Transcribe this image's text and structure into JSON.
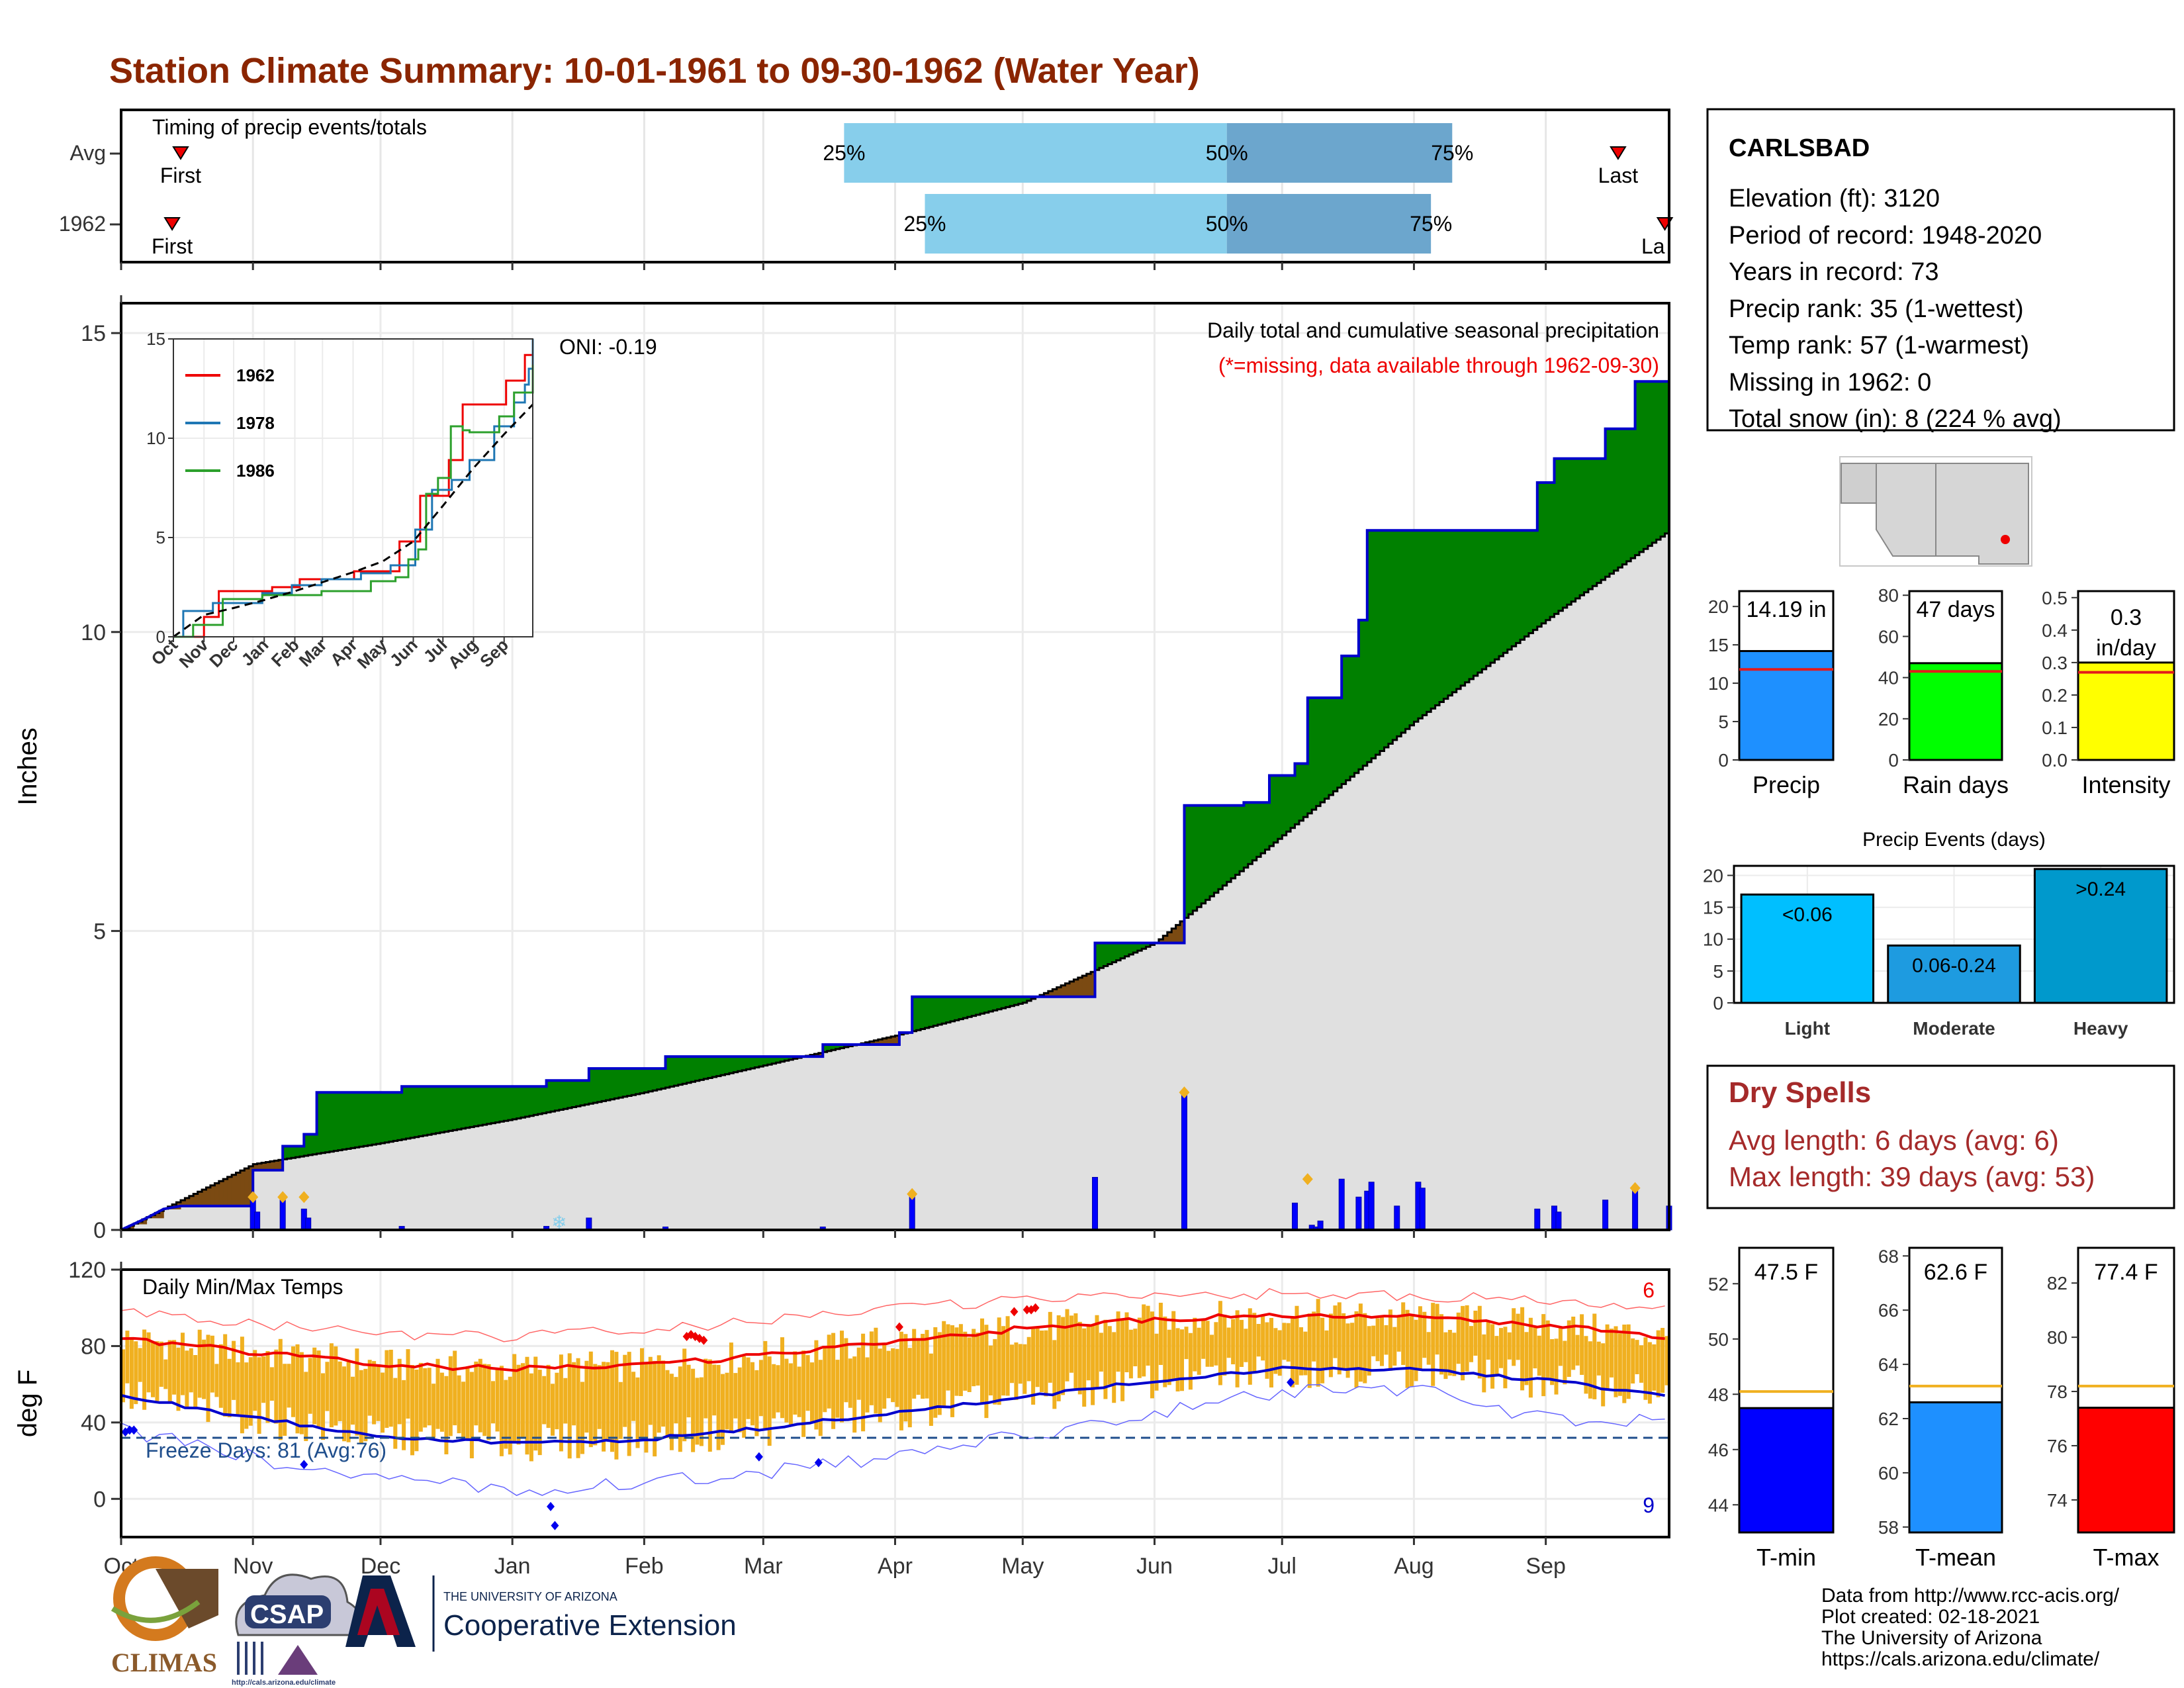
{
  "title": "Station Climate Summary: 10-01-1961 to 09-30-1962 (Water Year)",
  "colors": {
    "title": "#8B2500",
    "green": "#008000",
    "brown": "#7B4A12",
    "gray_fill": "#E0E0E0",
    "blue_line": "#0000CC",
    "event_light": "#87CEEB",
    "event_dark": "#6CA6CD",
    "orange": "#F0B020",
    "red": "#EE0000",
    "dark_red": "#A52A2A",
    "precip_bar": "#1E90FF",
    "rain_bar": "#00FF00",
    "intensity_bar": "#FFFF00",
    "pe_light": "#00BFFF",
    "pe_mod": "#1E9BE0",
    "pe_heavy": "#0099CC",
    "tmin": "#0000FF",
    "tmean": "#1E90FF",
    "tmax": "#FF0000"
  },
  "chart_data": [
    {
      "type": "table",
      "id": "timing",
      "title": "Timing of precip events/totals",
      "rows": [
        {
          "label": "Avg",
          "first_day": 14,
          "p25_day": 170,
          "p50_day": 260,
          "p75_day": 313,
          "last_day": 352,
          "p25_text": "25%",
          "p50_text": "50%",
          "p75_text": "75%",
          "first_text": "First",
          "last_text": "Last"
        },
        {
          "label": "1962",
          "first_day": 12,
          "p25_day": 189,
          "p50_day": 260,
          "p75_day": 308,
          "last_day": 363,
          "p25_text": "25%",
          "p50_text": "50%",
          "p75_text": "75%",
          "first_text": "First",
          "last_text": "La"
        }
      ]
    },
    {
      "type": "area",
      "id": "precip_main",
      "title": "Daily total and cumulative seasonal precipitation",
      "subtitle": "(*=missing, data available through 1962-09-30)",
      "annotation": "ONI: -0.19",
      "ylabel": "Inches",
      "ylim": [
        0,
        15.5
      ],
      "yticks": [
        0,
        5,
        10,
        15
      ],
      "months": [
        "Oct",
        "Nov",
        "Dec",
        "Jan",
        "Feb",
        "Mar",
        "Apr",
        "May",
        "Jun",
        "Jul",
        "Aug",
        "Sep"
      ],
      "month_days": [
        0,
        31,
        61,
        92,
        123,
        151,
        182,
        212,
        243,
        273,
        304,
        335
      ],
      "cumulative_1962": [
        [
          0,
          0
        ],
        [
          3,
          0.1
        ],
        [
          6,
          0.2
        ],
        [
          10,
          0.35
        ],
        [
          14,
          0.4
        ],
        [
          20,
          0.4
        ],
        [
          31,
          0.4
        ],
        [
          31,
          1.0
        ],
        [
          38,
          1.0
        ],
        [
          38,
          1.4
        ],
        [
          43,
          1.4
        ],
        [
          43,
          1.6
        ],
        [
          46,
          1.6
        ],
        [
          46,
          2.3
        ],
        [
          66,
          2.3
        ],
        [
          66,
          2.4
        ],
        [
          100,
          2.4
        ],
        [
          100,
          2.5
        ],
        [
          110,
          2.5
        ],
        [
          110,
          2.7
        ],
        [
          128,
          2.7
        ],
        [
          128,
          2.9
        ],
        [
          165,
          2.9
        ],
        [
          165,
          3.1
        ],
        [
          183,
          3.1
        ],
        [
          183,
          3.3
        ],
        [
          186,
          3.3
        ],
        [
          186,
          3.9
        ],
        [
          229,
          3.9
        ],
        [
          229,
          4.8
        ],
        [
          250,
          4.8
        ],
        [
          250,
          7.1
        ],
        [
          264,
          7.1
        ],
        [
          264,
          7.15
        ],
        [
          270,
          7.15
        ],
        [
          270,
          7.6
        ],
        [
          276,
          7.6
        ],
        [
          276,
          7.8
        ],
        [
          279,
          7.8
        ],
        [
          279,
          8.9
        ],
        [
          287,
          8.9
        ],
        [
          287,
          9.6
        ],
        [
          291,
          9.6
        ],
        [
          291,
          10.2
        ],
        [
          293,
          10.2
        ],
        [
          293,
          11.7
        ],
        [
          333,
          11.7
        ],
        [
          333,
          12.5
        ],
        [
          337,
          12.5
        ],
        [
          337,
          12.9
        ],
        [
          349,
          12.9
        ],
        [
          349,
          13.4
        ],
        [
          356,
          13.4
        ],
        [
          356,
          14.19
        ],
        [
          364,
          14.19
        ]
      ],
      "cumulative_avg": [
        [
          0,
          0
        ],
        [
          31,
          1.1
        ],
        [
          61,
          1.45
        ],
        [
          92,
          1.85
        ],
        [
          123,
          2.3
        ],
        [
          151,
          2.75
        ],
        [
          182,
          3.25
        ],
        [
          212,
          3.8
        ],
        [
          243,
          4.8
        ],
        [
          273,
          6.6
        ],
        [
          304,
          8.5
        ],
        [
          335,
          10.2
        ],
        [
          364,
          11.7
        ]
      ],
      "daily_bars": [
        [
          31,
          0.55
        ],
        [
          32,
          0.3
        ],
        [
          38,
          0.55
        ],
        [
          43,
          0.35
        ],
        [
          44,
          0.2
        ],
        [
          66,
          0.06
        ],
        [
          100,
          0.06
        ],
        [
          110,
          0.2
        ],
        [
          128,
          0.05
        ],
        [
          165,
          0.05
        ],
        [
          186,
          0.6
        ],
        [
          229,
          0.88
        ],
        [
          250,
          2.3
        ],
        [
          276,
          0.45
        ],
        [
          280,
          0.08
        ],
        [
          281,
          0.05
        ],
        [
          282,
          0.15
        ],
        [
          287,
          0.85
        ],
        [
          291,
          0.55
        ],
        [
          293,
          0.65
        ],
        [
          294,
          0.8
        ],
        [
          300,
          0.4
        ],
        [
          305,
          0.8
        ],
        [
          306,
          0.7
        ],
        [
          333,
          0.35
        ],
        [
          337,
          0.4
        ],
        [
          338,
          0.3
        ],
        [
          349,
          0.5
        ],
        [
          356,
          0.7
        ],
        [
          364,
          0.4
        ]
      ],
      "orange_markers": [
        [
          31,
          0.55
        ],
        [
          38,
          0.55
        ],
        [
          43,
          0.55
        ],
        [
          186,
          0.6
        ],
        [
          250,
          2.3
        ],
        [
          279,
          0.85
        ],
        [
          356,
          0.7
        ]
      ]
    },
    {
      "type": "line",
      "id": "precip_inset",
      "ylim": [
        0,
        15
      ],
      "yticks": [
        0,
        5,
        10,
        15
      ],
      "xticks": [
        "Oct",
        "Nov",
        "Dec",
        "Jan",
        "Feb",
        "Mar",
        "Apr",
        "May",
        "Jun",
        "Jul",
        "Aug",
        "Sep"
      ],
      "series": [
        {
          "name": "1962",
          "color": "#EE0000",
          "points": [
            [
              0,
              0
            ],
            [
              31,
              1.0
            ],
            [
              46,
              2.3
            ],
            [
              100,
              2.5
            ],
            [
              128,
              2.9
            ],
            [
              183,
              3.3
            ],
            [
              229,
              4.8
            ],
            [
              250,
              7.1
            ],
            [
              279,
              8.9
            ],
            [
              293,
              11.7
            ],
            [
              337,
              12.9
            ],
            [
              356,
              14.19
            ],
            [
              364,
              14.19
            ]
          ]
        },
        {
          "name": "1978",
          "color": "#1F77B4",
          "points": [
            [
              0,
              0
            ],
            [
              10,
              1.3
            ],
            [
              40,
              1.7
            ],
            [
              90,
              2.2
            ],
            [
              120,
              2.6
            ],
            [
              150,
              2.9
            ],
            [
              190,
              3.2
            ],
            [
              220,
              3.6
            ],
            [
              245,
              5.4
            ],
            [
              262,
              7.4
            ],
            [
              282,
              7.9
            ],
            [
              300,
              8.9
            ],
            [
              325,
              10.6
            ],
            [
              345,
              11.8
            ],
            [
              356,
              12.7
            ],
            [
              360,
              13.5
            ],
            [
              364,
              15.0
            ]
          ]
        },
        {
          "name": "1986",
          "color": "#2CA02C",
          "points": [
            [
              0,
              0
            ],
            [
              20,
              0.6
            ],
            [
              50,
              1.9
            ],
            [
              90,
              2.1
            ],
            [
              150,
              2.3
            ],
            [
              200,
              2.8
            ],
            [
              225,
              3.0
            ],
            [
              238,
              3.9
            ],
            [
              248,
              4.4
            ],
            [
              256,
              7.2
            ],
            [
              268,
              8.0
            ],
            [
              281,
              10.6
            ],
            [
              287,
              10.6
            ],
            [
              293,
              10.4
            ],
            [
              300,
              10.3
            ],
            [
              330,
              11.1
            ],
            [
              345,
              12.3
            ],
            [
              364,
              13.7
            ]
          ]
        }
      ],
      "avg_points": [
        [
          0,
          0
        ],
        [
          31,
          1.1
        ],
        [
          61,
          1.45
        ],
        [
          92,
          1.85
        ],
        [
          123,
          2.3
        ],
        [
          151,
          2.75
        ],
        [
          182,
          3.25
        ],
        [
          212,
          3.8
        ],
        [
          243,
          4.8
        ],
        [
          273,
          6.6
        ],
        [
          304,
          8.5
        ],
        [
          335,
          10.2
        ],
        [
          364,
          11.7
        ]
      ]
    },
    {
      "type": "line",
      "id": "temps",
      "title": "Daily Min/Max Temps",
      "ylabel": "deg F",
      "ylim": [
        -20,
        120
      ],
      "yticks": [
        0,
        40,
        80,
        120
      ],
      "freeze_text": "Freeze Days: 81 (Avg:76)",
      "count_high": "6",
      "count_low": "9",
      "freeze_line": 32,
      "avg_max": [
        [
          0,
          84
        ],
        [
          30,
          77
        ],
        [
          61,
          70
        ],
        [
          92,
          68
        ],
        [
          123,
          70
        ],
        [
          151,
          75
        ],
        [
          182,
          83
        ],
        [
          212,
          89
        ],
        [
          243,
          94
        ],
        [
          273,
          96
        ],
        [
          304,
          95
        ],
        [
          335,
          91
        ],
        [
          364,
          84
        ]
      ],
      "avg_min": [
        [
          0,
          54
        ],
        [
          30,
          43
        ],
        [
          61,
          33
        ],
        [
          92,
          29
        ],
        [
          123,
          31
        ],
        [
          151,
          37
        ],
        [
          182,
          45
        ],
        [
          212,
          53
        ],
        [
          243,
          62
        ],
        [
          273,
          68
        ],
        [
          304,
          68
        ],
        [
          335,
          62
        ],
        [
          364,
          54
        ]
      ],
      "rec_max": [
        [
          0,
          98
        ],
        [
          30,
          92
        ],
        [
          61,
          86
        ],
        [
          92,
          85
        ],
        [
          123,
          88
        ],
        [
          151,
          93
        ],
        [
          182,
          100
        ],
        [
          212,
          104
        ],
        [
          243,
          108
        ],
        [
          273,
          107
        ],
        [
          304,
          106
        ],
        [
          335,
          104
        ],
        [
          364,
          98
        ]
      ],
      "rec_min": [
        [
          0,
          36
        ],
        [
          30,
          22
        ],
        [
          61,
          10
        ],
        [
          92,
          5
        ],
        [
          123,
          8
        ],
        [
          151,
          14
        ],
        [
          182,
          22
        ],
        [
          212,
          33
        ],
        [
          243,
          45
        ],
        [
          273,
          56
        ],
        [
          304,
          57
        ],
        [
          335,
          42
        ],
        [
          364,
          40
        ]
      ],
      "red_markers": [
        [
          133,
          85
        ],
        [
          134,
          86
        ],
        [
          135,
          85
        ],
        [
          136,
          84
        ],
        [
          137,
          83
        ],
        [
          183,
          90
        ],
        [
          210,
          98
        ],
        [
          213,
          99
        ],
        [
          214,
          99
        ],
        [
          215,
          100
        ]
      ],
      "blue_markers": [
        [
          1,
          35
        ],
        [
          2,
          36
        ],
        [
          3,
          36
        ],
        [
          43,
          18
        ],
        [
          101,
          -4
        ],
        [
          102,
          -14
        ],
        [
          150,
          22
        ],
        [
          164,
          19
        ],
        [
          275,
          61
        ]
      ]
    },
    {
      "type": "bar",
      "id": "precip_total",
      "categories": [
        "Precip"
      ],
      "values": [
        14.19
      ],
      "avg": 11.8,
      "ylim": [
        0,
        22
      ],
      "yticks": [
        0,
        5,
        10,
        15,
        20
      ],
      "label_lines": [
        "14.19 in"
      ]
    },
    {
      "type": "bar",
      "id": "rain_days",
      "categories": [
        "Rain days"
      ],
      "values": [
        47
      ],
      "avg": 43,
      "ylim": [
        0,
        82
      ],
      "yticks": [
        0,
        20,
        40,
        60,
        80
      ],
      "label_lines": [
        "47 days"
      ]
    },
    {
      "type": "bar",
      "id": "intensity",
      "categories": [
        "Intensity"
      ],
      "values": [
        0.3
      ],
      "avg": 0.27,
      "ylim": [
        0,
        0.52
      ],
      "yticks": [
        "0.0",
        "0.1",
        "0.2",
        "0.3",
        "0.4",
        "0.5"
      ],
      "label_lines": [
        "0.3",
        "in/day"
      ]
    },
    {
      "type": "bar",
      "id": "precip_events",
      "title": "Precip Events (days)",
      "categories": [
        "Light",
        "Moderate",
        "Heavy"
      ],
      "values": [
        17,
        9,
        21
      ],
      "bar_labels": [
        "<0.06",
        "0.06-0.24",
        ">0.24"
      ],
      "ylim": [
        0,
        21.5
      ],
      "yticks": [
        0,
        5,
        10,
        15,
        20
      ]
    },
    {
      "type": "bar",
      "id": "tmin",
      "categories": [
        "T-min"
      ],
      "values": [
        47.5
      ],
      "avg": 48.1,
      "ylim": [
        43,
        53.3
      ],
      "yticks": [
        44,
        46,
        48,
        50,
        52
      ],
      "label_lines": [
        "47.5 F"
      ]
    },
    {
      "type": "bar",
      "id": "tmean",
      "categories": [
        "T-mean"
      ],
      "values": [
        62.6
      ],
      "avg": 63.2,
      "ylim": [
        57.8,
        68.3
      ],
      "yticks": [
        58,
        60,
        62,
        64,
        66,
        68
      ],
      "label_lines": [
        "62.6 F"
      ]
    },
    {
      "type": "bar",
      "id": "tmax",
      "categories": [
        "T-max"
      ],
      "values": [
        77.4
      ],
      "avg": 78.2,
      "ylim": [
        72.8,
        83.3
      ],
      "yticks": [
        74,
        76,
        78,
        80,
        82
      ],
      "label_lines": [
        "77.4 F"
      ]
    }
  ],
  "station": {
    "name": "CARLSBAD",
    "lines": [
      "Elevation (ft): 3120",
      "Period of record: 1948-2020",
      "Years in record: 73",
      "Precip rank: 35 (1-wettest)",
      "Temp rank: 57 (1-warmest)",
      "Missing in 1962: 0",
      "Total snow (in): 8 (224 % avg)"
    ]
  },
  "dry_spells": {
    "title": "Dry Spells",
    "lines": [
      "Avg length: 6 days (avg: 6)",
      "Max length: 39 days (avg: 53)"
    ]
  },
  "footer": {
    "lines": [
      "Data from http://www.rcc-acis.org/",
      "Plot created: 02-18-2021",
      "The University of Arizona",
      "https://cals.arizona.edu/climate/"
    ],
    "logos": {
      "climas": "CLIMAS",
      "csap": "CSAP",
      "csap_url": "http://cals.arizona.edu/climate",
      "ua_small": "THE UNIVERSITY OF ARIZONA",
      "ua_big": "Cooperative Extension"
    }
  }
}
